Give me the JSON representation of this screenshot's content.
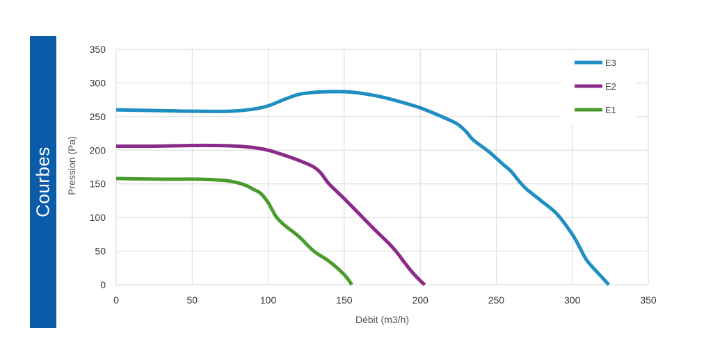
{
  "side_label": "Courbes",
  "colors": {
    "tab": "#0a5ca8",
    "E3": "#1f8ec2",
    "E2": "#8a2b8a",
    "E1": "#4a9b2e",
    "grid": "#d9d9d9"
  },
  "chart_data": {
    "type": "line",
    "title": "",
    "xlabel": "Débit (m3/h)",
    "ylabel": "Pression (Pa)",
    "xlim": [
      0,
      350
    ],
    "ylim": [
      0,
      350
    ],
    "xticks": [
      0,
      50,
      100,
      150,
      200,
      250,
      300,
      350
    ],
    "yticks": [
      0,
      50,
      100,
      150,
      200,
      250,
      300,
      350
    ],
    "grid": true,
    "legend_position": "top-right",
    "series": [
      {
        "name": "E3",
        "x": [
          0,
          25,
          50,
          75,
          90,
          100,
          110,
          120,
          130,
          140,
          150,
          160,
          175,
          190,
          200,
          210,
          220,
          225,
          230,
          235,
          245,
          255,
          260,
          265,
          270,
          280,
          290,
          300,
          305,
          310,
          320,
          324
        ],
        "y": [
          260,
          259,
          258,
          258,
          261,
          266,
          275,
          283,
          286,
          287,
          287,
          285,
          279,
          270,
          263,
          254,
          244,
          238,
          228,
          215,
          198,
          178,
          168,
          154,
          142,
          124,
          105,
          75,
          55,
          35,
          10,
          0
        ]
      },
      {
        "name": "E2",
        "x": [
          0,
          25,
          50,
          65,
          80,
          90,
          100,
          110,
          120,
          130,
          135,
          140,
          150,
          160,
          170,
          180,
          185,
          190,
          195,
          200,
          203
        ],
        "y": [
          206,
          206,
          207,
          207,
          206,
          204,
          200,
          193,
          185,
          175,
          165,
          150,
          128,
          105,
          82,
          60,
          47,
          32,
          18,
          6,
          0
        ]
      },
      {
        "name": "E1",
        "x": [
          0,
          25,
          50,
          65,
          75,
          85,
          90,
          95,
          100,
          105,
          110,
          120,
          130,
          140,
          150,
          155
        ],
        "y": [
          158,
          157,
          157,
          156,
          154,
          148,
          142,
          136,
          122,
          102,
          90,
          72,
          50,
          35,
          15,
          0
        ]
      }
    ]
  }
}
